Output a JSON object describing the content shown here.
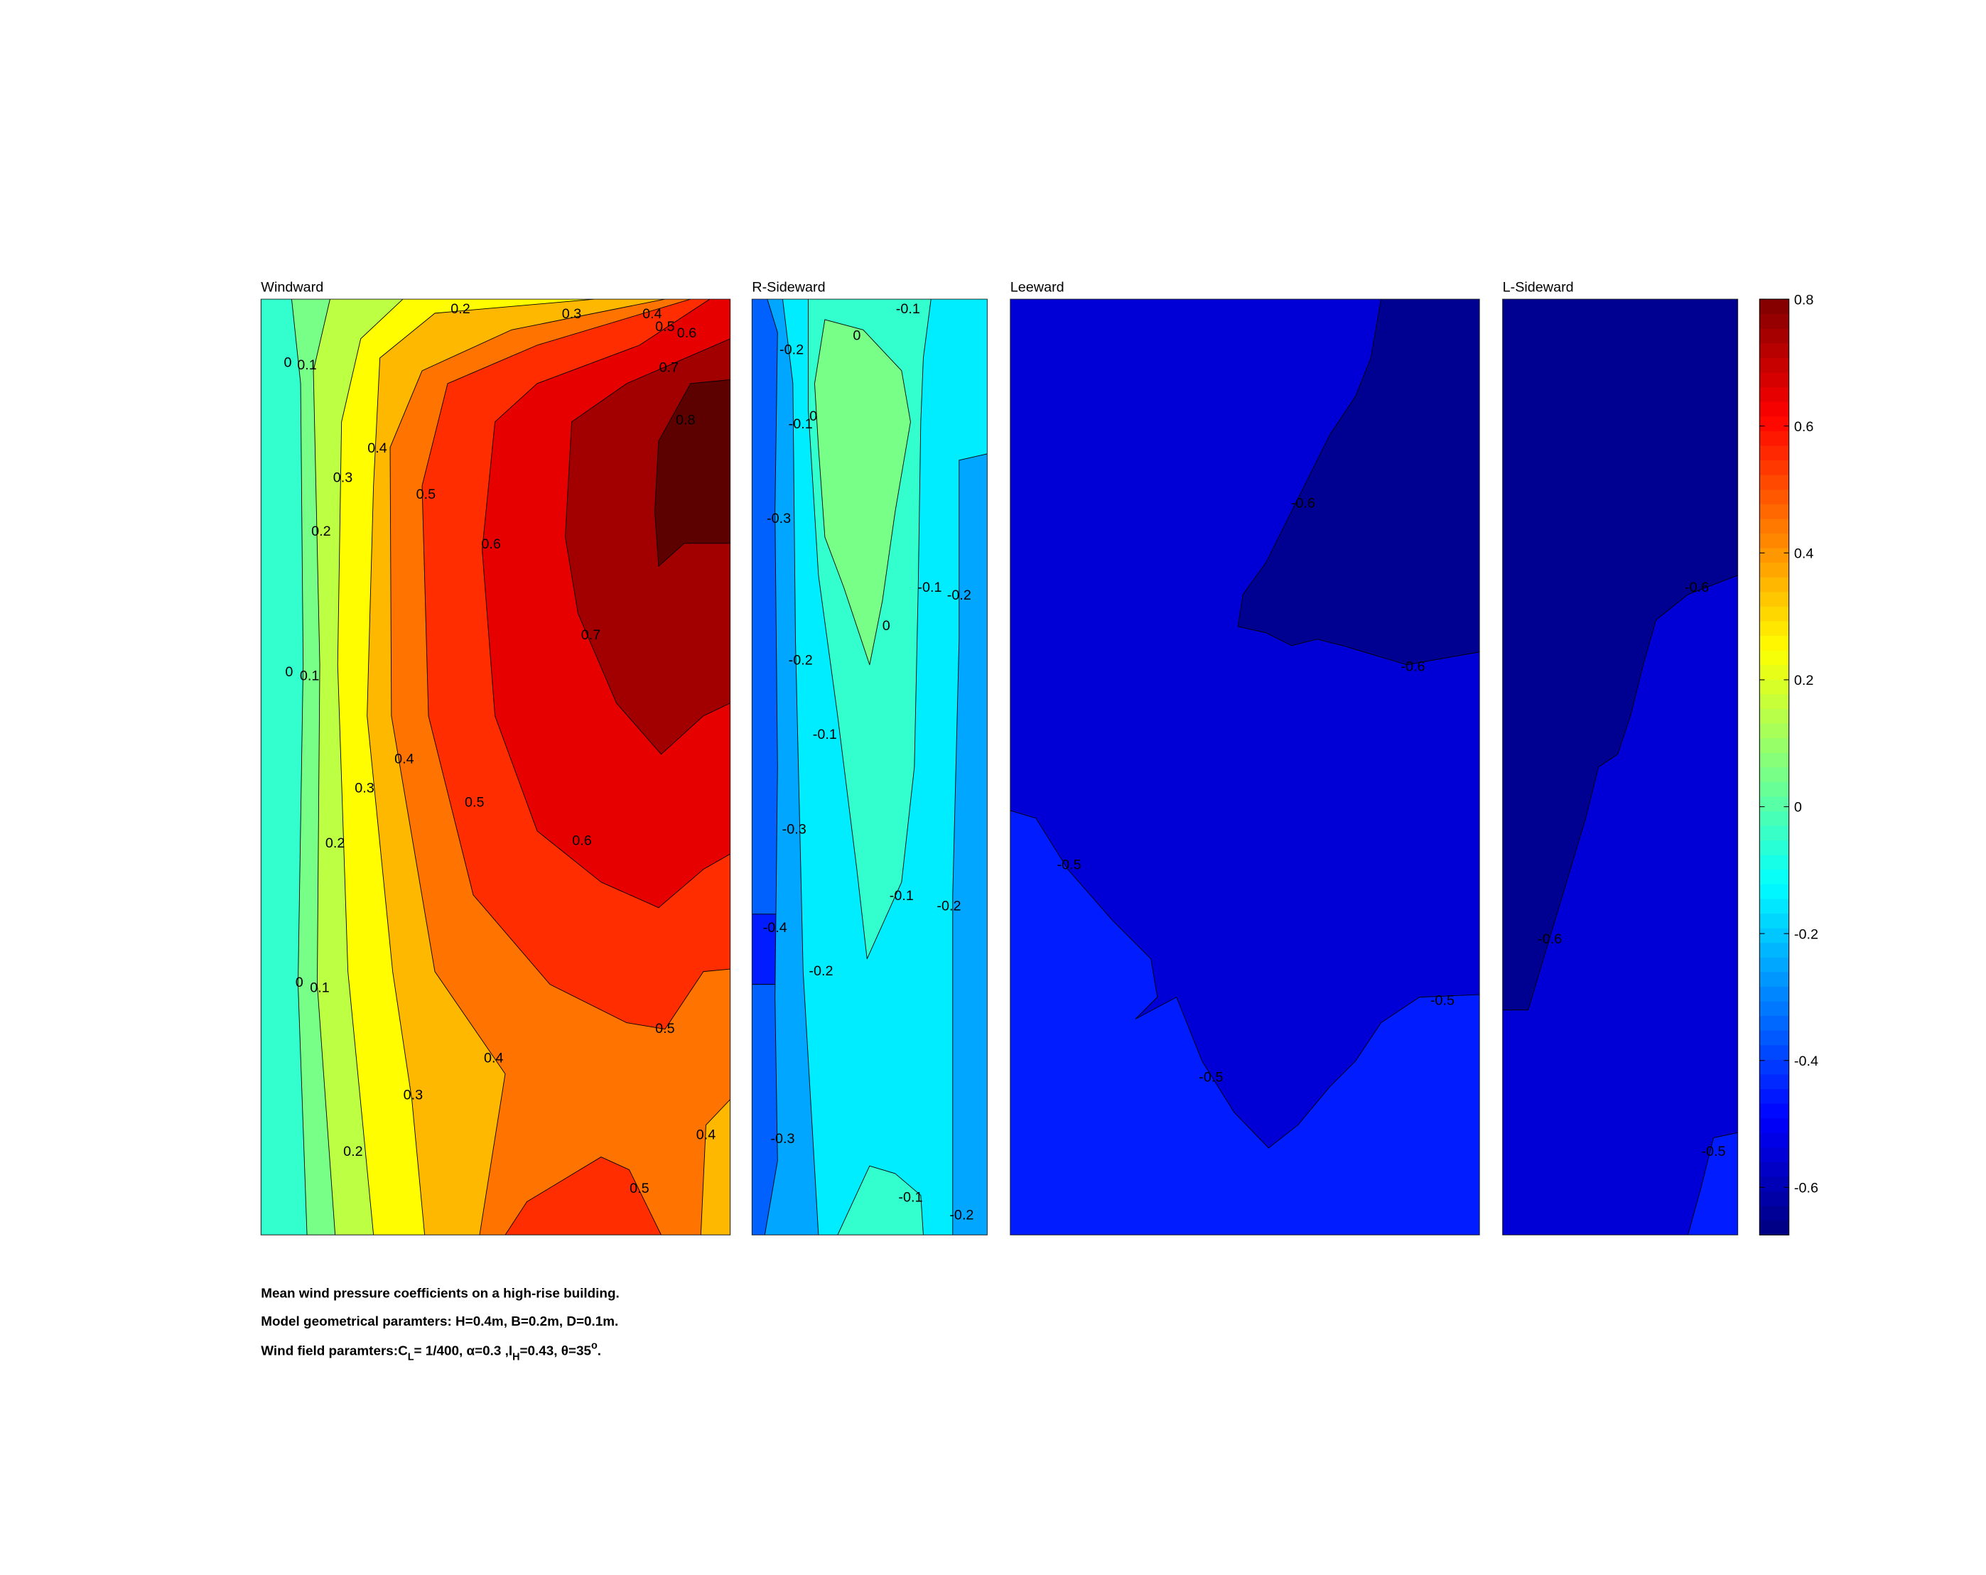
{
  "chart_data": {
    "type": "contour",
    "panels": [
      {
        "title": "Windward",
        "levels": [
          -0.1,
          0,
          0.1,
          0.2,
          0.3,
          0.4,
          0.5,
          0.6,
          0.7,
          0.8
        ],
        "labels": [
          0,
          0.1,
          0.2,
          0.3,
          0.4,
          0.5,
          0.6,
          0.7,
          0.8,
          0.4,
          0.3,
          0.5,
          0.2,
          0.6,
          0.7,
          0,
          0.1,
          0.4,
          0.3,
          0.5,
          0.2,
          0.6,
          0,
          0.1,
          0.5,
          0.4,
          0.3,
          0.4,
          0.2,
          0.5
        ]
      },
      {
        "title": "R-Sideward",
        "levels": [
          -0.4,
          -0.5,
          -0.3,
          -0.2,
          -0.1,
          0
        ],
        "labels": [
          -0.1,
          -0.2,
          0,
          -0.1,
          0,
          -0.3,
          -0.1,
          -0.2,
          0,
          -0.2,
          -0.1,
          -0.3,
          -0.1,
          -0.2,
          -0.4,
          -0.2,
          -0.3,
          -0.1,
          -0.2
        ]
      },
      {
        "title": "Leeward",
        "levels": [
          -0.6,
          -0.7,
          -0.5
        ],
        "labels": [
          -0.6,
          -0.6,
          -0.5,
          -0.5,
          -0.5
        ]
      },
      {
        "title": "L-Sideward",
        "levels": [
          -0.6,
          -0.7,
          -0.5
        ],
        "labels": [
          -0.6,
          -0.6,
          -0.5
        ]
      }
    ],
    "colorbar": {
      "clim": [
        -0.675,
        0.8
      ],
      "ticks": [
        -0.6,
        -0.4,
        -0.2,
        0,
        0.2,
        0.4,
        0.6,
        0.8
      ]
    },
    "caption": [
      "Mean wind pressure coefficients on a high-rise building.",
      "Model geometrical paramters: H=0.4m, B=0.2m, D=0.1m.",
      [
        "Wind field paramters:C",
        "L",
        "= 1/400, α=0.3 ,I",
        "H",
        "=0.43, θ=35",
        "o",
        "."
      ]
    ]
  }
}
